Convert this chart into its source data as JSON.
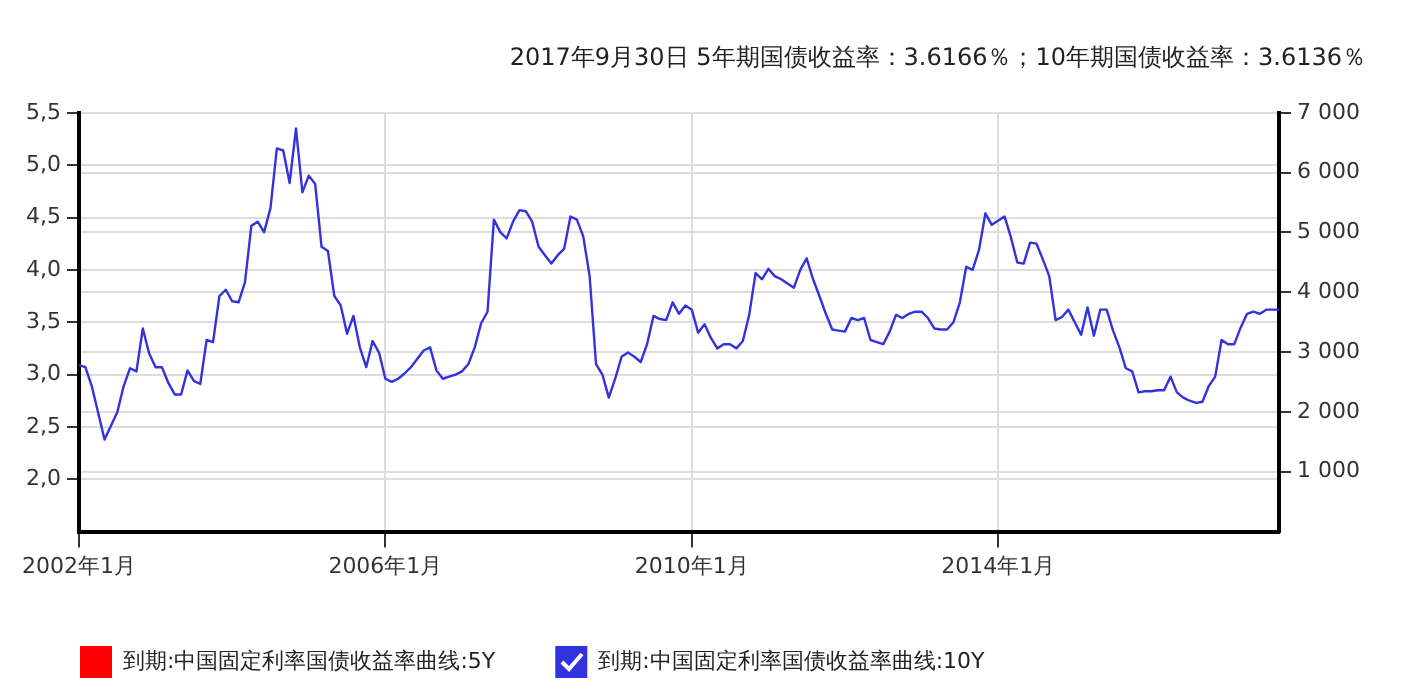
{
  "chart_data": {
    "type": "line",
    "title": "2017年9月30日 5年期国债收益率：3.6166％；10年期国债收益率：3.6136％",
    "series": [
      {
        "name": "到期:中国固定利率国债收益率曲线:5Y",
        "color": "#ff0000"
      },
      {
        "name": "到期:中国固定利率国债收益率曲线:10Y",
        "color": "#3333dd",
        "x": [
          "2002-01",
          "2002-02",
          "2002-03",
          "2002-05",
          "2002-07",
          "2002-08",
          "2002-09",
          "2002-10",
          "2002-11",
          "2002-12",
          "2003-01",
          "2003-02",
          "2003-03",
          "2003-04",
          "2003-05",
          "2003-06",
          "2003-07",
          "2003-08",
          "2003-09",
          "2003-10",
          "2003-11",
          "2003-12",
          "2004-01",
          "2004-02",
          "2004-03",
          "2004-04",
          "2004-05",
          "2004-06",
          "2004-07",
          "2004-08",
          "2004-09",
          "2004-10",
          "2004-11",
          "2004-12",
          "2005-01",
          "2005-02",
          "2005-03",
          "2005-04",
          "2005-05",
          "2005-06",
          "2005-07",
          "2005-08",
          "2005-09",
          "2005-10",
          "2005-11",
          "2005-12",
          "2006-01",
          "2006-02",
          "2006-03",
          "2006-04",
          "2006-05",
          "2006-07",
          "2006-08",
          "2006-09",
          "2006-10",
          "2006-11",
          "2006-12",
          "2007-01",
          "2007-02",
          "2007-03",
          "2007-04",
          "2007-05",
          "2007-06",
          "2007-07",
          "2007-08",
          "2007-09",
          "2007-10",
          "2007-11",
          "2007-12",
          "2008-01",
          "2008-02",
          "2008-03",
          "2008-04",
          "2008-05",
          "2008-06",
          "2008-07",
          "2008-08",
          "2008-09",
          "2008-10",
          "2008-11",
          "2008-12",
          "2009-01",
          "2009-02",
          "2009-03",
          "2009-04",
          "2009-05",
          "2009-06",
          "2009-07",
          "2009-08",
          "2009-09",
          "2009-10",
          "2009-11",
          "2009-12",
          "2010-01",
          "2010-02",
          "2010-03",
          "2010-04",
          "2010-05",
          "2010-06",
          "2010-07",
          "2010-08",
          "2010-09",
          "2010-10",
          "2010-11",
          "2010-12",
          "2011-01",
          "2011-02",
          "2011-03",
          "2011-04",
          "2011-05",
          "2011-06",
          "2011-07",
          "2011-08",
          "2011-09",
          "2011-10",
          "2011-11",
          "2011-12",
          "2012-01",
          "2012-02",
          "2012-03",
          "2012-04",
          "2012-05",
          "2012-06",
          "2012-07",
          "2012-08",
          "2012-09",
          "2012-10",
          "2012-11",
          "2012-12",
          "2013-01",
          "2013-02",
          "2013-03",
          "2013-04",
          "2013-05",
          "2013-06",
          "2013-07",
          "2013-08",
          "2013-09",
          "2013-10",
          "2013-11",
          "2013-12",
          "2014-02",
          "2014-03",
          "2014-04",
          "2014-05",
          "2014-06",
          "2014-07",
          "2014-08",
          "2014-09",
          "2014-10",
          "2014-11",
          "2014-12",
          "2015-01",
          "2015-02",
          "2015-03",
          "2015-04",
          "2015-05",
          "2015-06",
          "2015-07",
          "2015-08",
          "2015-09",
          "2015-10",
          "2015-11",
          "2015-12",
          "2016-01",
          "2016-02",
          "2016-03",
          "2016-04",
          "2016-05",
          "2016-06",
          "2016-07",
          "2016-08",
          "2016-09",
          "2016-10",
          "2016-11",
          "2016-12",
          "2017-01",
          "2017-02",
          "2017-03",
          "2017-04",
          "2017-05",
          "2017-06",
          "2017-07",
          "2017-08",
          "2017-09"
        ],
        "values": [
          3.09,
          3.07,
          2.89,
          2.38,
          2.64,
          2.89,
          3.06,
          3.03,
          3.44,
          3.2,
          3.07,
          3.07,
          2.92,
          2.81,
          2.81,
          3.04,
          2.94,
          2.91,
          3.33,
          3.31,
          3.75,
          3.81,
          3.7,
          3.69,
          3.88,
          4.42,
          4.46,
          4.36,
          4.59,
          5.16,
          5.14,
          4.83,
          5.35,
          4.74,
          4.9,
          4.82,
          4.22,
          4.18,
          3.75,
          3.66,
          3.39,
          3.56,
          3.26,
          3.07,
          3.32,
          3.21,
          2.96,
          2.93,
          2.96,
          3.01,
          3.07,
          3.23,
          3.26,
          3.04,
          2.96,
          2.98,
          3.0,
          3.03,
          3.1,
          3.26,
          3.49,
          3.6,
          4.48,
          4.36,
          4.3,
          4.46,
          4.57,
          4.56,
          4.46,
          4.22,
          4.14,
          4.06,
          4.14,
          4.2,
          4.51,
          4.48,
          4.32,
          3.94,
          3.1,
          3.0,
          2.78,
          2.96,
          3.17,
          3.21,
          3.17,
          3.12,
          3.29,
          3.56,
          3.53,
          3.52,
          3.69,
          3.58,
          3.66,
          3.62,
          3.4,
          3.48,
          3.35,
          3.25,
          3.29,
          3.29,
          3.25,
          3.32,
          3.57,
          3.97,
          3.91,
          4.01,
          3.94,
          3.91,
          3.87,
          3.83,
          4.0,
          4.11,
          3.91,
          3.75,
          3.58,
          3.43,
          3.42,
          3.41,
          3.54,
          3.52,
          3.54,
          3.33,
          3.31,
          3.29,
          3.41,
          3.57,
          3.54,
          3.58,
          3.6,
          3.6,
          3.54,
          3.44,
          3.43,
          3.43,
          3.5,
          3.69,
          4.03,
          4.0,
          4.19,
          4.54,
          4.43,
          4.51,
          4.31,
          4.07,
          4.06,
          4.26,
          4.25,
          4.1,
          3.94,
          3.52,
          3.55,
          3.62,
          3.5,
          3.38,
          3.64,
          3.37,
          3.62,
          3.62,
          3.42,
          3.26,
          3.06,
          3.03,
          2.83,
          2.84,
          2.84,
          2.85,
          2.85,
          2.98,
          2.83,
          2.78,
          2.75,
          2.73,
          2.74,
          2.89,
          2.98,
          3.33,
          3.29,
          3.29,
          3.45,
          3.58,
          3.6,
          3.58,
          3.62,
          3.62,
          3.62
        ]
      }
    ],
    "xlim": [
      "2002-01",
      "2017-09"
    ],
    "xticks": [
      {
        "value": "2002-01",
        "label": "2002年1月"
      },
      {
        "value": "2006-01",
        "label": "2006年1月"
      },
      {
        "value": "2010-01",
        "label": "2010年1月"
      },
      {
        "value": "2014-01",
        "label": "2014年1月"
      }
    ],
    "ylim": [
      1.5,
      5.5
    ],
    "yticks": [
      {
        "value": 2,
        "label": "2,0"
      },
      {
        "value": 2.5,
        "label": "2,5"
      },
      {
        "value": 3,
        "label": "3,0"
      },
      {
        "value": 3.5,
        "label": "3,5"
      },
      {
        "value": 4,
        "label": "4,0"
      },
      {
        "value": 4.5,
        "label": "4,5"
      },
      {
        "value": 5,
        "label": "5,0"
      },
      {
        "value": 5.5,
        "label": "5,5"
      }
    ],
    "y2lim": [
      0,
      7000
    ],
    "y2ticks": [
      {
        "value": 1000,
        "label": "1 000"
      },
      {
        "value": 2000,
        "label": "2 000"
      },
      {
        "value": 3000,
        "label": "3 000"
      },
      {
        "value": 4000,
        "label": "4 000"
      },
      {
        "value": 5000,
        "label": "5 000"
      },
      {
        "value": 6000,
        "label": "6 000"
      },
      {
        "value": 7000,
        "label": "7 000"
      }
    ],
    "grid": true,
    "legend": "bottom left",
    "marker": "none"
  }
}
